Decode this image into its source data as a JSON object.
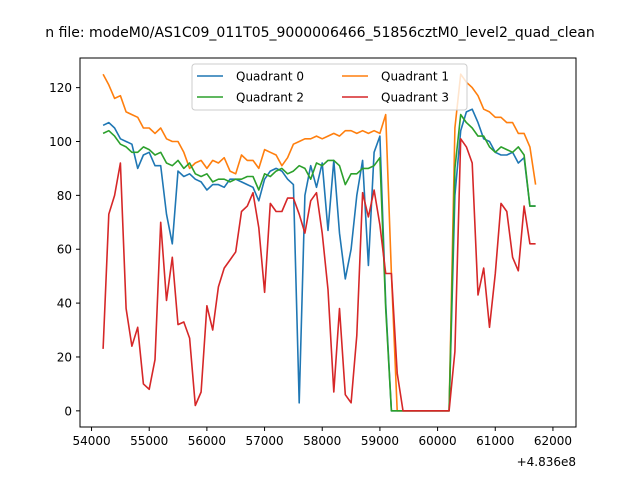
{
  "chart_data": {
    "type": "line",
    "title": "n file: modeM0/AS1C09_011T05_9000006466_51856cztM0_level2_quad_clean",
    "xlabel": "",
    "ylabel": "",
    "x_offset_label": "+4.836e8",
    "xlim": [
      53800,
      62400
    ],
    "ylim": [
      -6,
      131
    ],
    "x_ticks": [
      54000,
      55000,
      56000,
      57000,
      58000,
      59000,
      60000,
      61000,
      62000
    ],
    "x_tick_labels": [
      "54000",
      "55000",
      "56000",
      "57000",
      "58000",
      "59000",
      "60000",
      "61000",
      "62000"
    ],
    "y_ticks": [
      0,
      20,
      40,
      60,
      80,
      100,
      120
    ],
    "y_tick_labels": [
      "0",
      "20",
      "40",
      "60",
      "80",
      "100",
      "120"
    ],
    "grid": false,
    "legend_placement": "top-center",
    "x": [
      54200,
      54300,
      54400,
      54500,
      54600,
      54700,
      54800,
      54900,
      55000,
      55100,
      55200,
      55300,
      55400,
      55500,
      55600,
      55700,
      55800,
      55900,
      56000,
      56100,
      56200,
      56300,
      56400,
      56500,
      56600,
      56700,
      56800,
      56900,
      57000,
      57100,
      57200,
      57300,
      57400,
      57500,
      57600,
      57700,
      57800,
      57900,
      58000,
      58100,
      58200,
      58300,
      58400,
      58500,
      58600,
      58700,
      58800,
      58900,
      59000,
      59100,
      59200,
      59300,
      59400,
      59500,
      59600,
      59700,
      59800,
      59900,
      60000,
      60100,
      60200,
      60300,
      60400,
      60500,
      60600,
      60700,
      60800,
      60900,
      61000,
      61100,
      61200,
      61300,
      61400,
      61500,
      61600,
      61700
    ],
    "series": [
      {
        "name": "Quadrant 0",
        "color": "#1f77b4",
        "values": [
          106,
          107,
          105,
          101,
          100,
          99,
          90,
          95,
          96,
          91,
          91,
          73,
          62,
          89,
          87,
          88,
          86,
          85,
          82,
          84,
          84,
          83,
          86,
          86,
          85,
          84,
          83,
          78,
          86,
          89,
          90,
          89,
          86,
          84,
          3,
          80,
          91,
          83,
          92,
          67,
          93,
          66,
          49,
          60,
          80,
          93,
          54,
          96,
          102,
          40,
          0,
          0,
          0,
          0,
          0,
          0,
          0,
          0,
          0,
          0,
          0,
          80,
          104,
          111,
          112,
          107,
          101,
          100,
          96,
          95,
          95,
          96,
          92,
          94,
          76,
          76
        ]
      },
      {
        "name": "Quadrant 1",
        "color": "#ff7f0e",
        "values": [
          125,
          121,
          116,
          117,
          111,
          110,
          109,
          105,
          105,
          103,
          105,
          101,
          100,
          100,
          96,
          90,
          92,
          93,
          90,
          93,
          92,
          94,
          89,
          88,
          95,
          93,
          93,
          90,
          97,
          96,
          95,
          91,
          94,
          99,
          100,
          101,
          101,
          102,
          101,
          102,
          103,
          102,
          104,
          104,
          103,
          104,
          103,
          104,
          103,
          110,
          51,
          0,
          0,
          0,
          0,
          0,
          0,
          0,
          0,
          0,
          0,
          105,
          125,
          122,
          120,
          117,
          112,
          111,
          109,
          109,
          107,
          107,
          103,
          103,
          98,
          84
        ]
      },
      {
        "name": "Quadrant 2",
        "color": "#2ca02c",
        "values": [
          103,
          104,
          102,
          99,
          98,
          96,
          96,
          98,
          97,
          95,
          96,
          92,
          91,
          93,
          90,
          92,
          88,
          87,
          88,
          85,
          86,
          86,
          85,
          86,
          86,
          87,
          87,
          82,
          88,
          87,
          89,
          90,
          88,
          89,
          91,
          90,
          86,
          92,
          91,
          93,
          93,
          91,
          84,
          88,
          88,
          90,
          90,
          91,
          94,
          38,
          0,
          0,
          0,
          0,
          0,
          0,
          0,
          0,
          0,
          0,
          0,
          90,
          110,
          107,
          105,
          102,
          102,
          98,
          96,
          98,
          97,
          96,
          98,
          95,
          76,
          76
        ]
      },
      {
        "name": "Quadrant 3",
        "color": "#d62728",
        "values": [
          23,
          73,
          80,
          92,
          38,
          24,
          31,
          10,
          8,
          19,
          70,
          41,
          57,
          32,
          33,
          27,
          2,
          7,
          39,
          30,
          46,
          53,
          56,
          59,
          74,
          76,
          81,
          68,
          44,
          77,
          74,
          74,
          79,
          79,
          73,
          66,
          78,
          81,
          66,
          45,
          7,
          38,
          6,
          3,
          28,
          81,
          72,
          82,
          69,
          51,
          51,
          14,
          0,
          0,
          0,
          0,
          0,
          0,
          0,
          0,
          0,
          22,
          101,
          98,
          92,
          43,
          53,
          31,
          51,
          77,
          74,
          57,
          52,
          76,
          62,
          62
        ]
      }
    ]
  }
}
